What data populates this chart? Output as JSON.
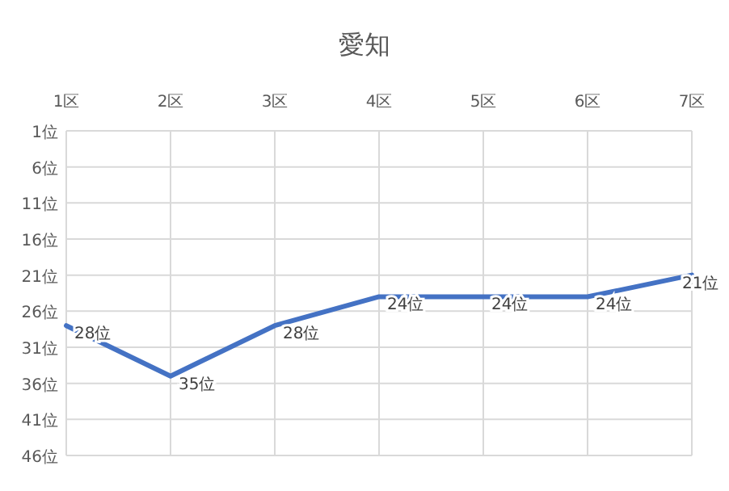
{
  "chart_data": {
    "type": "line",
    "title": "愛知",
    "categories": [
      "1区",
      "2区",
      "3区",
      "4区",
      "5区",
      "6区",
      "7区"
    ],
    "series": [
      {
        "color": "#4472c4",
        "values": [
          28,
          35,
          28,
          24,
          24,
          24,
          21
        ],
        "value_labels": [
          "28位",
          "35位",
          "28位",
          "24位",
          "24位",
          "24位",
          "21位"
        ]
      }
    ],
    "ylim": [
      46,
      1
    ],
    "yticks": [
      {
        "value": 1,
        "label": "1位"
      },
      {
        "value": 6,
        "label": "6位"
      },
      {
        "value": 11,
        "label": "11位"
      },
      {
        "value": 16,
        "label": "16位"
      },
      {
        "value": 21,
        "label": "21位"
      },
      {
        "value": 26,
        "label": "26位"
      },
      {
        "value": 31,
        "label": "31位"
      },
      {
        "value": 36,
        "label": "36位"
      },
      {
        "value": 41,
        "label": "41位"
      },
      {
        "value": 46,
        "label": "46位"
      }
    ],
    "grid": true,
    "marker": "none",
    "line_style": "solid"
  }
}
